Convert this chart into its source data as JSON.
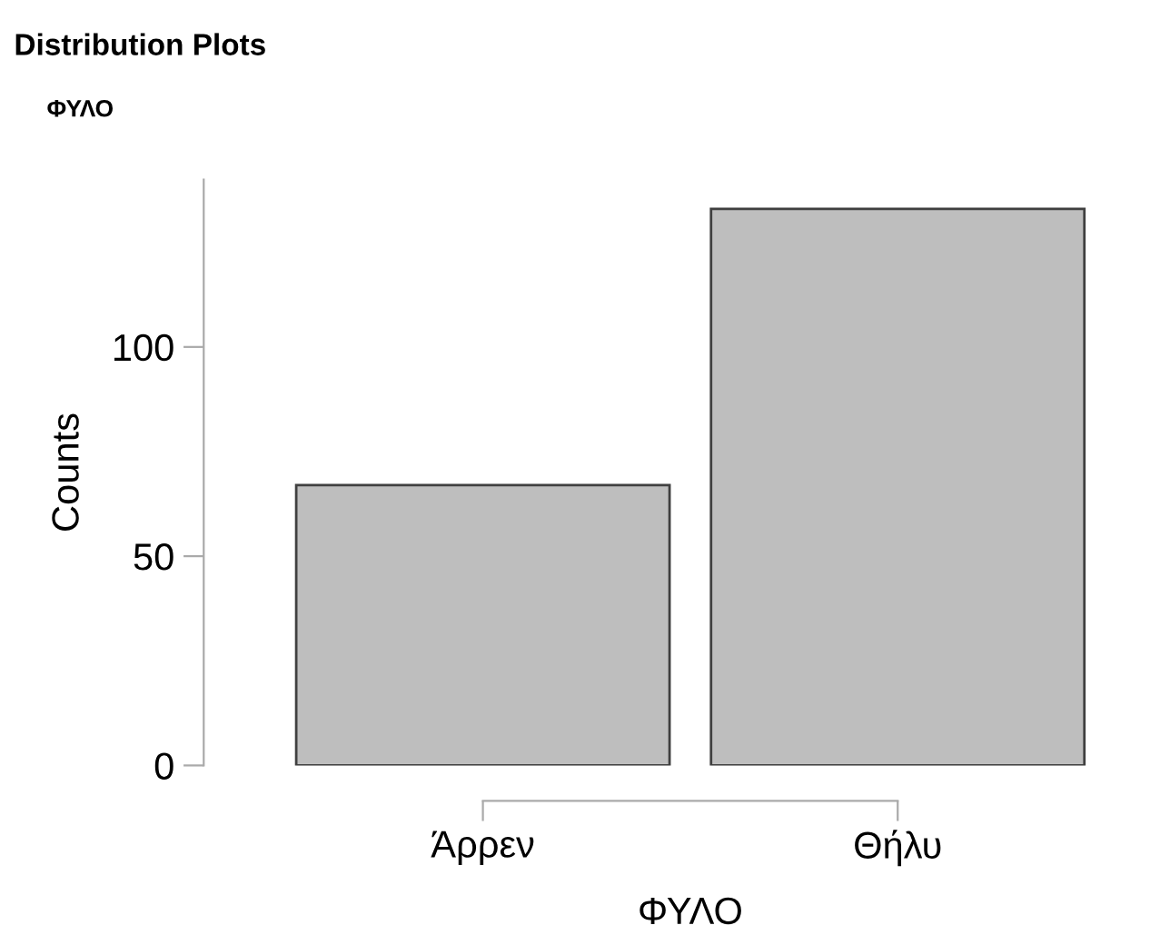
{
  "chart_data": {
    "type": "bar",
    "title": "Distribution Plots",
    "subtitle": "ΦΥΛΟ",
    "xlabel": "ΦΥΛΟ",
    "ylabel": "Counts",
    "categories": [
      "Άρρεν",
      "Θήλυ"
    ],
    "values": [
      67,
      133
    ],
    "color": "#bebebe",
    "ylim": [
      0,
      140
    ],
    "yticks": [
      0,
      50,
      100
    ],
    "grid": false,
    "legend": false
  }
}
